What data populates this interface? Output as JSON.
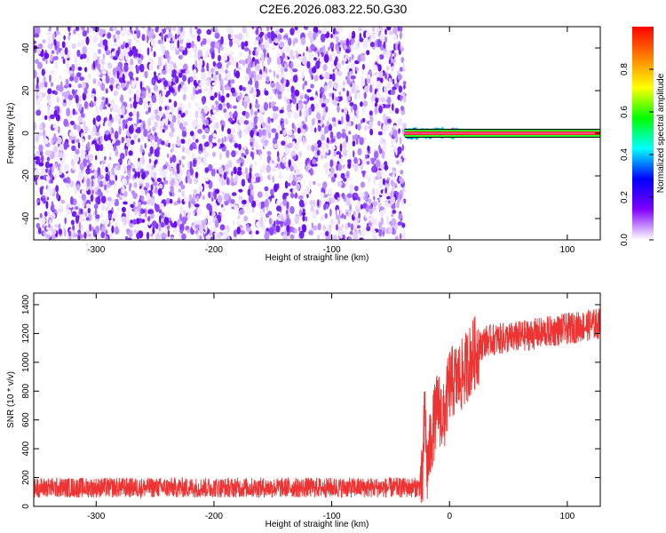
{
  "title": "C2E6.2026.083.22.50.G30",
  "chart_data": [
    {
      "type": "heatmap",
      "name": "spectrogram",
      "xlabel": "Height of straight line (km)",
      "ylabel": "Frequency (Hz)",
      "xlim": [
        -353,
        128
      ],
      "ylim": [
        -50,
        50
      ],
      "xticks": [
        -300,
        -200,
        -100,
        0,
        100
      ],
      "yticks": [
        -40,
        -20,
        0,
        20,
        40
      ],
      "noise_region_x": [
        -353,
        -38
      ],
      "signal_region_x": [
        -38,
        128
      ],
      "carrier_frequency": 0,
      "colorbar": {
        "label": "Normalized spectral amplitude",
        "range": [
          0,
          1
        ],
        "ticks": [
          0.0,
          0.2,
          0.4,
          0.6,
          0.8
        ],
        "colors": [
          "#ffffff",
          "#8000ff",
          "#0000ff",
          "#00ffff",
          "#00ff00",
          "#ffff00",
          "#ff8000",
          "#ff0000"
        ]
      }
    },
    {
      "type": "line",
      "name": "snr",
      "xlabel": "Height of straight line (km)",
      "ylabel": "SNR (10 * v/v)",
      "xlim": [
        -353,
        128
      ],
      "ylim": [
        0,
        1480
      ],
      "xticks": [
        -300,
        -200,
        -100,
        0,
        100
      ],
      "yticks": [
        0,
        200,
        400,
        600,
        800,
        1000,
        1200,
        1400
      ],
      "color": "#ee3333",
      "profile": [
        {
          "x": -353,
          "y": 130
        },
        {
          "x": -30,
          "y": 130
        },
        {
          "x": -23,
          "y": 140
        },
        {
          "x": -21,
          "y": 700
        },
        {
          "x": -19,
          "y": 250
        },
        {
          "x": -15,
          "y": 500
        },
        {
          "x": -10,
          "y": 700
        },
        {
          "x": -5,
          "y": 600
        },
        {
          "x": 0,
          "y": 850
        },
        {
          "x": 10,
          "y": 900
        },
        {
          "x": 20,
          "y": 1050
        },
        {
          "x": 30,
          "y": 1150
        },
        {
          "x": 60,
          "y": 1180
        },
        {
          "x": 90,
          "y": 1220
        },
        {
          "x": 128,
          "y": 1270
        }
      ],
      "noise_amplitude": 70
    }
  ]
}
